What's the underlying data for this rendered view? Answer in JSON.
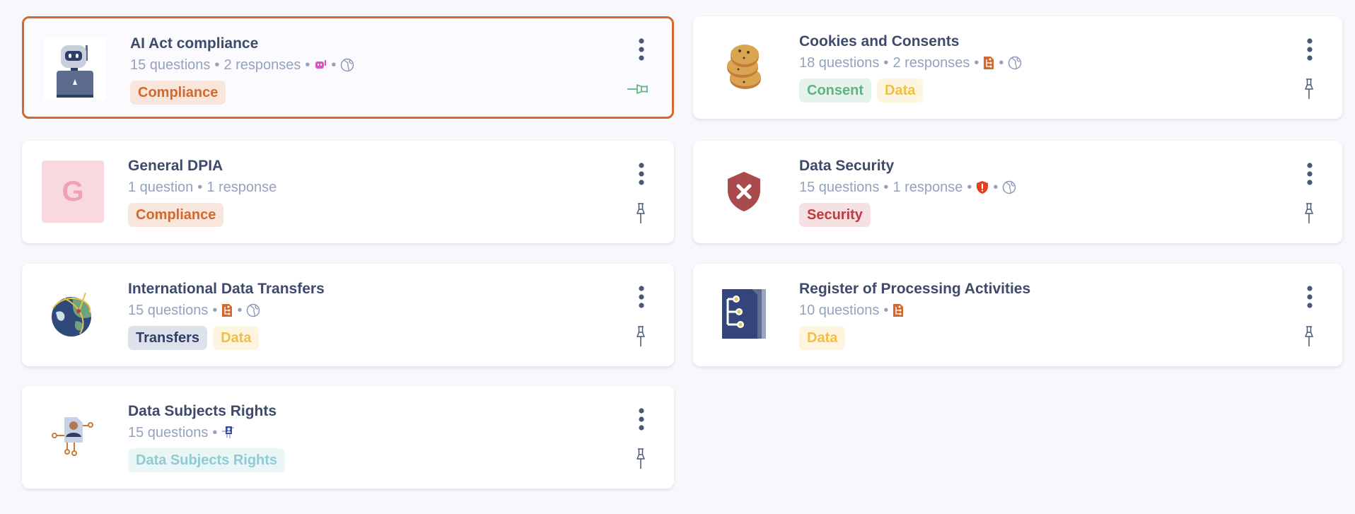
{
  "cards": [
    {
      "title": "AI Act compliance",
      "questions": "15 questions",
      "responses": "2 responses",
      "meta_icons": [
        "robot-icon",
        "globe-icon"
      ],
      "thumb": "robot",
      "selected": true,
      "pinned": true,
      "tags": [
        {
          "label": "Compliance",
          "bg": "#f8e5dc",
          "fg": "#d2692f"
        }
      ]
    },
    {
      "title": "Cookies and Consents",
      "questions": "18 questions",
      "responses": "2 responses",
      "meta_icons": [
        "ropa-icon",
        "globe-icon"
      ],
      "thumb": "cookies",
      "selected": false,
      "pinned": false,
      "tags": [
        {
          "label": "Consent",
          "bg": "#e5f3ec",
          "fg": "#5fb383"
        },
        {
          "label": "Data",
          "bg": "#fdf5e0",
          "fg": "#f0bf45"
        }
      ]
    },
    {
      "title": "General DPIA",
      "questions": "1 question",
      "responses": "1 response",
      "meta_icons": [],
      "thumb": "letter",
      "thumb_letter": "G",
      "selected": false,
      "pinned": false,
      "tags": [
        {
          "label": "Compliance",
          "bg": "#f8e5dc",
          "fg": "#d2692f"
        }
      ]
    },
    {
      "title": "Data Security",
      "questions": "15 questions",
      "responses": "1 response",
      "meta_icons": [
        "shield-alert-icon",
        "globe-icon"
      ],
      "thumb": "shield",
      "selected": false,
      "pinned": false,
      "tags": [
        {
          "label": "Security",
          "bg": "#f6e1e2",
          "fg": "#c0393f"
        }
      ]
    },
    {
      "title": "International Data Transfers",
      "questions": "15 questions",
      "responses": "",
      "meta_icons": [
        "ropa-icon",
        "globe-icon"
      ],
      "thumb": "earth",
      "selected": false,
      "pinned": false,
      "tags": [
        {
          "label": "Transfers",
          "bg": "#dde1ea",
          "fg": "#2f3e66"
        },
        {
          "label": "Data",
          "bg": "#fdf5e0",
          "fg": "#f0bf45"
        }
      ]
    },
    {
      "title": "Register of Processing Activities",
      "questions": "10 questions",
      "responses": "",
      "meta_icons": [
        "ropa-icon"
      ],
      "thumb": "register",
      "selected": false,
      "pinned": false,
      "tags": [
        {
          "label": "Data",
          "bg": "#fdf5e0",
          "fg": "#f0bf45"
        }
      ]
    },
    {
      "title": "Data Subjects Rights",
      "questions": "15 questions",
      "responses": "",
      "meta_icons": [
        "data-subject-icon"
      ],
      "thumb": "subject",
      "selected": false,
      "pinned": false,
      "tags": [
        {
          "label": "Data Subjects Rights",
          "bg": "#eaf5f6",
          "fg": "#8ecbd3"
        }
      ]
    }
  ],
  "separator": "•",
  "colors": {
    "accent": "#d2692f",
    "title": "#3d4a6b",
    "meta": "#95a1bd",
    "pinned": "#5fb383"
  }
}
